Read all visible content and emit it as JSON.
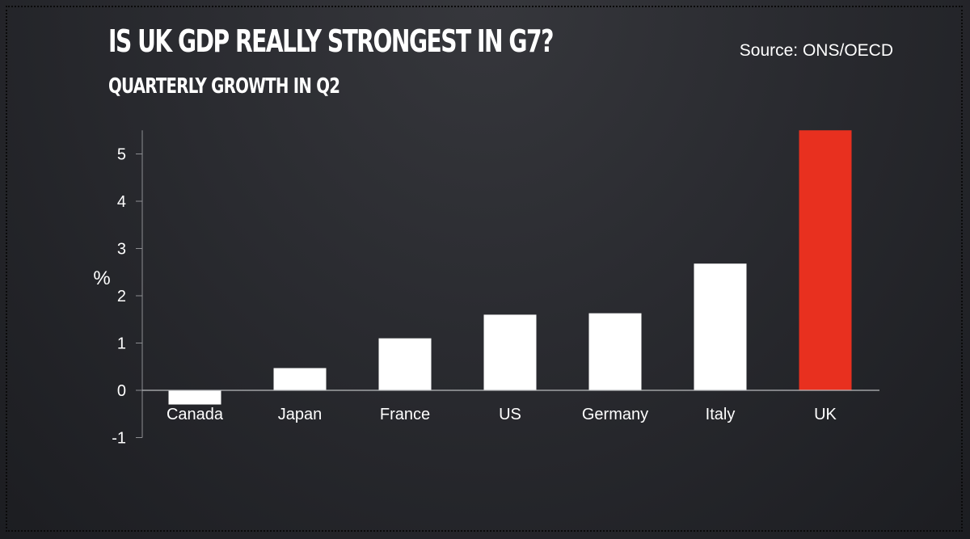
{
  "header": {
    "title": "IS UK GDP REALLY STRONGEST IN G7?",
    "subtitle": "QUARTERLY GROWTH IN Q2",
    "source": "Source: ONS/OECD"
  },
  "colors": {
    "background": "#2a2b30",
    "bar_default": "#ffffff",
    "bar_highlight": "#e8301f",
    "text": "#ffffff"
  },
  "chart_data": {
    "type": "bar",
    "title": "IS UK GDP REALLY STRONGEST IN G7?",
    "subtitle": "QUARTERLY GROWTH IN Q2",
    "xlabel": "",
    "ylabel": "%",
    "categories": [
      "Canada",
      "Japan",
      "France",
      "US",
      "Germany",
      "Italy",
      "UK"
    ],
    "values": [
      -0.3,
      0.47,
      1.1,
      1.6,
      1.63,
      2.68,
      5.5
    ],
    "highlight": "UK",
    "ylim": [
      -1,
      5.5
    ],
    "yticks": [
      -1,
      0,
      1,
      2,
      3,
      4,
      5
    ],
    "grid": false,
    "legend": "none"
  }
}
